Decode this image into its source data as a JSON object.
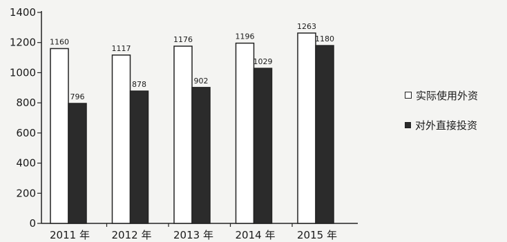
{
  "chart_data": {
    "type": "bar",
    "categories": [
      "2011 年",
      "2012 年",
      "2013 年",
      "2014 年",
      "2015 年"
    ],
    "series": [
      {
        "name": "实际使用外资",
        "values": [
          1160,
          1117,
          1176,
          1196,
          1263
        ],
        "color": "#ffffff"
      },
      {
        "name": "对外直接投资",
        "values": [
          796,
          878,
          902,
          1029,
          1180
        ],
        "color": "#2b2b2b"
      }
    ],
    "ylim": [
      0,
      1400
    ],
    "yticks": [
      0,
      200,
      400,
      600,
      800,
      1000,
      1200,
      1400
    ],
    "legend_position": "right",
    "grid": false
  },
  "legend": {
    "items": [
      {
        "label": "实际使用外资",
        "style": "light"
      },
      {
        "label": "对外直接投资",
        "style": "dark"
      }
    ]
  }
}
